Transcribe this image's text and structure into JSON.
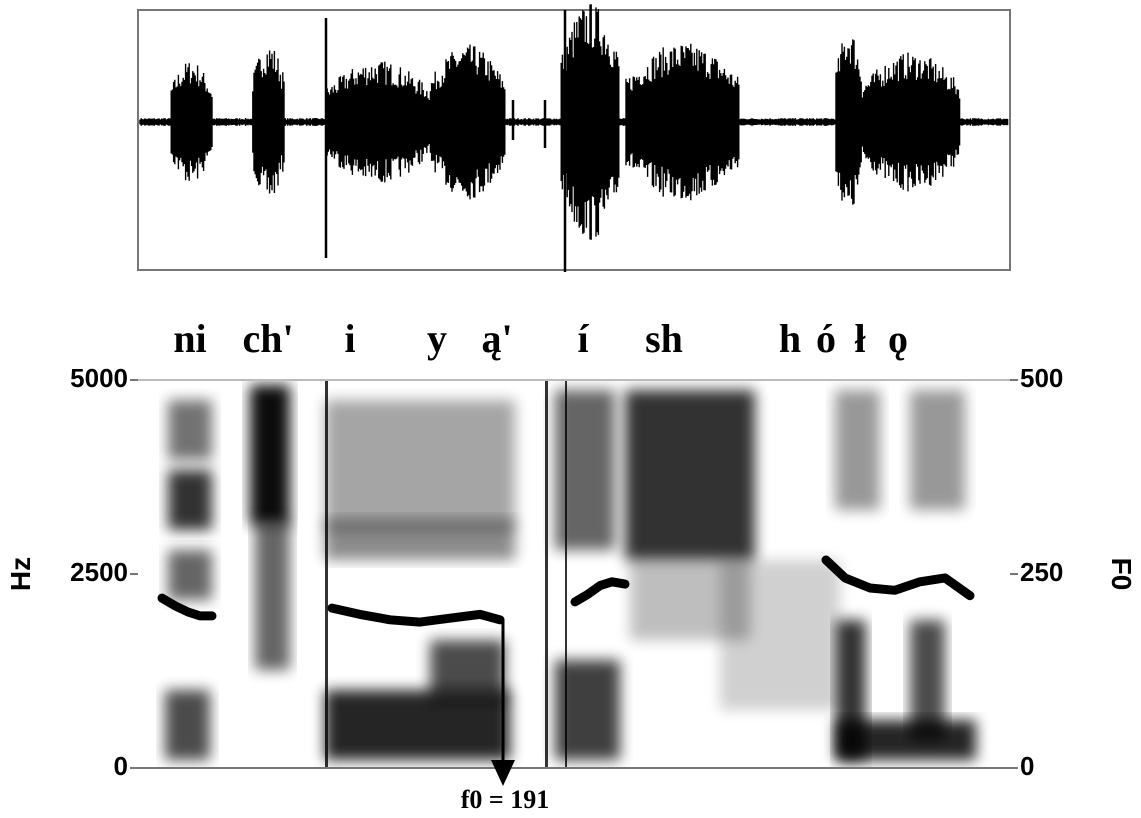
{
  "chart_data": {
    "type": "spectrogram",
    "segments": [
      "ni",
      "ch'",
      "i",
      "y",
      "ą'",
      "í",
      "sh",
      "h",
      "ó",
      "ł",
      "ǫ"
    ],
    "ylabel": "Hz",
    "ylim": [
      0,
      5000
    ],
    "yticks": [
      0,
      2500,
      5000
    ],
    "y2label": "F0",
    "y2lim": [
      0,
      500
    ],
    "y2ticks": [
      0,
      250,
      500
    ],
    "series": [
      {
        "axis": "y2",
        "color": "#000000",
        "values": [
          219,
          209,
          201,
          196,
          196
        ]
      },
      {
        "axis": "y2",
        "color": "#000000",
        "values": [
          206,
          198,
          191,
          188,
          193,
          198,
          191
        ]
      },
      {
        "axis": "y2",
        "color": "#000000",
        "values": [
          214,
          224,
          235,
          240,
          237
        ]
      },
      {
        "axis": "y2",
        "color": "#000000",
        "values": [
          268,
          245,
          232,
          229,
          240,
          245,
          222
        ]
      }
    ],
    "annotation": "f0 = 191"
  }
}
